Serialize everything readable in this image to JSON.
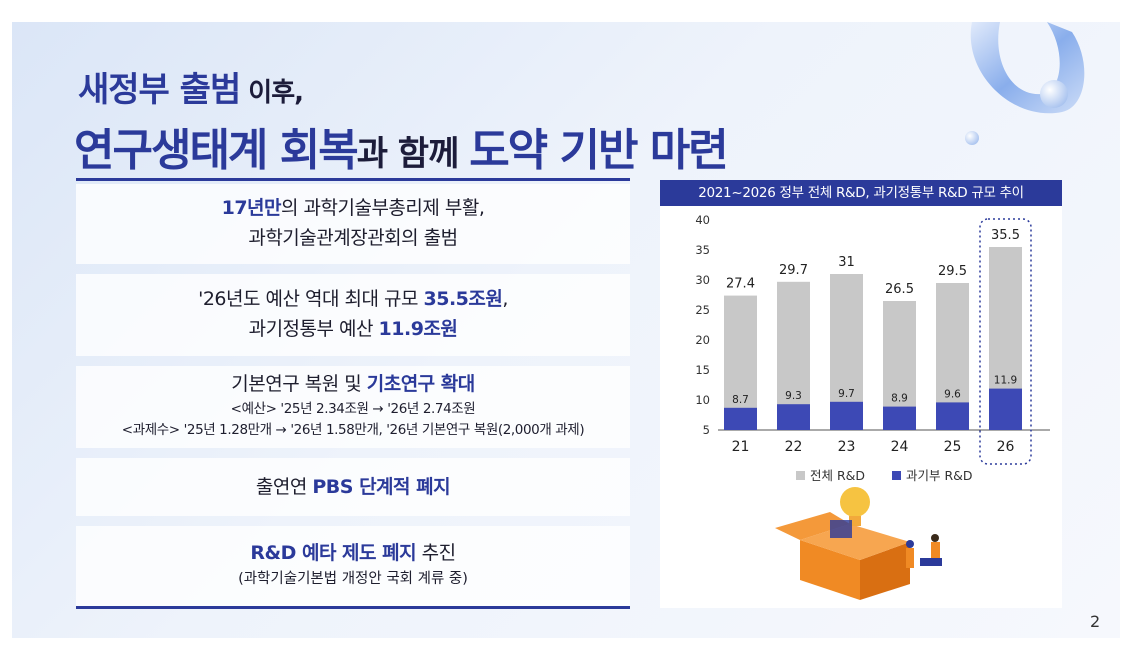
{
  "title": {
    "line1_main": "새정부 출범",
    "line1_tail": " 이후,",
    "line2_a": "연구생태계 회복",
    "line2_b": "과 함께 ",
    "line2_c": "도약 기반 마련"
  },
  "boxes": {
    "b1": {
      "a1": "17년만",
      "a2": "의 과학기술부총리제 부활,",
      "l2": "과학기술관계장관회의 출범"
    },
    "b2": {
      "a1": "'26년도 예산 역대 최대 규모 ",
      "a2": "35.5조원",
      "a3": ",",
      "b1": "과기정통부 예산 ",
      "b2": "11.9조원"
    },
    "b3": {
      "a1": "기본연구 복원 및 ",
      "a2": "기초연구 확대",
      "l2": "<예산> '25년 2.34조원 → '26년 2.74조원",
      "l3": "<과제수> '25년 1.28만개 → '26년 1.58만개, '26년 기본연구 복원(2,000개 과제)"
    },
    "b4": {
      "a1": "출연연 ",
      "a2": "PBS 단계적 폐지"
    },
    "b5": {
      "a1": "R&D 예타 제도 폐지",
      "a2": " 추진",
      "l2": "(과학기술기본법 개정안 국회 계류 중)"
    }
  },
  "page_number": "2",
  "colors": {
    "navy": "#2b3a9a",
    "bar_total": "#c8c8c8",
    "bar_ministry": "#3d49b5"
  },
  "chart_data": {
    "type": "bar",
    "title": "2021~2026 정부 전체 R&D,  과기정통부 R&D 규모 추이",
    "categories": [
      "21",
      "22",
      "23",
      "24",
      "25",
      "26"
    ],
    "series": [
      {
        "name": "전체 R&D",
        "values": [
          27.4,
          29.7,
          31,
          26.5,
          29.5,
          35.5
        ],
        "labels": [
          "27.4",
          "29.7",
          "31",
          "26.5",
          "29.5",
          "35.5"
        ]
      },
      {
        "name": "과기부 R&D",
        "values": [
          8.7,
          9.3,
          9.7,
          8.9,
          9.6,
          11.9
        ],
        "labels": [
          "8.7",
          "9.3",
          "9.7",
          "8.9",
          "9.6",
          "11.9"
        ]
      }
    ],
    "y_ticks": [
      "5",
      "10",
      "15",
      "20",
      "25",
      "30",
      "35",
      "40"
    ],
    "ylim": [
      5,
      40
    ],
    "highlight_category": "26",
    "legend": "bottom",
    "grid": false
  }
}
